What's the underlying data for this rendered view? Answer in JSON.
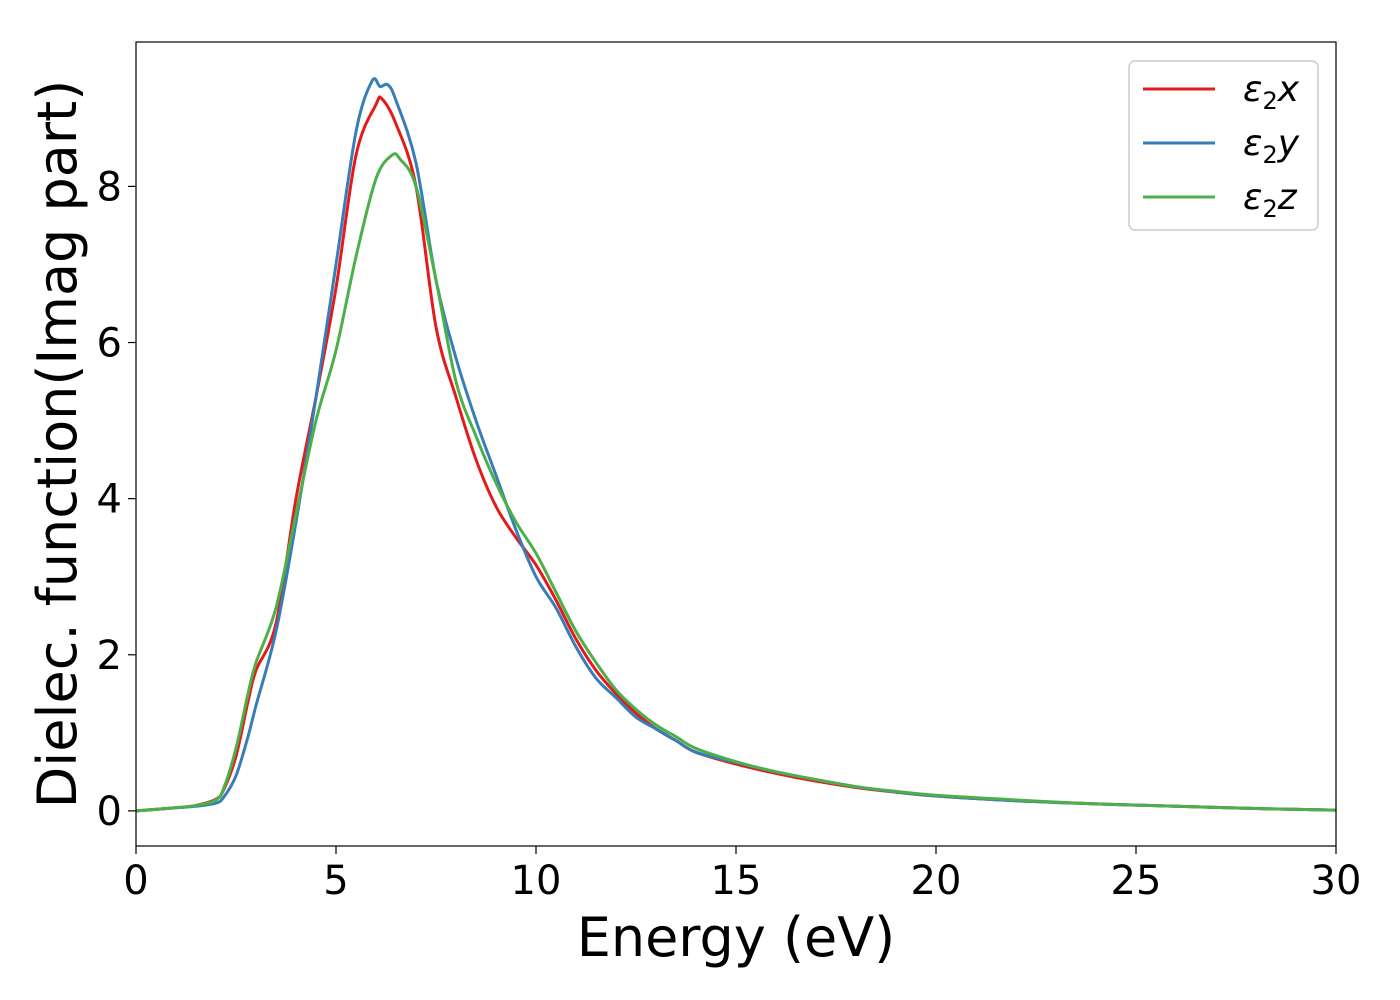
{
  "chart_data": {
    "type": "line",
    "title": "",
    "xlabel": "Energy (eV)",
    "ylabel": "Dielec. function(Imag part)",
    "xlim": [
      0,
      30
    ],
    "ylim": [
      -0.45,
      9.85
    ],
    "xticks": [
      0,
      5,
      10,
      15,
      20,
      25,
      30
    ],
    "xtick_labels": [
      "0",
      "5",
      "10",
      "15",
      "20",
      "25",
      "30"
    ],
    "yticks": [
      0,
      2,
      4,
      6,
      8
    ],
    "ytick_labels": [
      "0",
      "2",
      "4",
      "6",
      "8"
    ],
    "grid": false,
    "legend_position": "top-right",
    "series": [
      {
        "name": "ε2x",
        "legend": {
          "base": "ε",
          "sub": "2",
          "suffix": "x"
        },
        "color": "#e41a1c",
        "x": [
          0,
          1,
          1.5,
          2,
          2.2,
          2.5,
          2.8,
          3,
          3.5,
          4,
          4.5,
          5,
          5.5,
          6,
          6.15,
          6.5,
          7,
          7.5,
          8,
          8.5,
          9,
          9.5,
          10,
          10.5,
          11,
          11.5,
          12,
          12.5,
          13,
          13.5,
          14,
          15,
          16,
          17,
          18,
          19,
          20,
          22,
          24,
          26,
          28,
          30
        ],
        "y": [
          0,
          0.04,
          0.07,
          0.15,
          0.28,
          0.7,
          1.4,
          1.8,
          2.4,
          4.0,
          5.3,
          6.7,
          8.4,
          9.05,
          9.12,
          8.8,
          8.0,
          6.2,
          5.3,
          4.5,
          3.9,
          3.5,
          3.15,
          2.7,
          2.2,
          1.8,
          1.5,
          1.25,
          1.05,
          0.9,
          0.75,
          0.6,
          0.48,
          0.38,
          0.3,
          0.24,
          0.19,
          0.13,
          0.09,
          0.06,
          0.03,
          0.01
        ]
      },
      {
        "name": "ε2y",
        "legend": {
          "base": "ε",
          "sub": "2",
          "suffix": "y"
        },
        "color": "#377eb8",
        "x": [
          0,
          1,
          1.5,
          2,
          2.2,
          2.5,
          2.8,
          3,
          3.5,
          4,
          4.5,
          5,
          5.5,
          5.9,
          6.1,
          6.3,
          6.5,
          7,
          7.5,
          8,
          8.5,
          9,
          9.5,
          10,
          10.5,
          11,
          11.5,
          12,
          12.5,
          13,
          13.5,
          14,
          15,
          16,
          17,
          18,
          19,
          20,
          22,
          24,
          26,
          28,
          30
        ],
        "y": [
          0,
          0.04,
          0.06,
          0.1,
          0.18,
          0.45,
          0.95,
          1.35,
          2.3,
          3.7,
          5.3,
          7.0,
          8.7,
          9.35,
          9.28,
          9.3,
          9.1,
          8.3,
          6.8,
          5.8,
          5.0,
          4.3,
          3.6,
          3.0,
          2.6,
          2.1,
          1.7,
          1.45,
          1.2,
          1.05,
          0.9,
          0.75,
          0.62,
          0.5,
          0.4,
          0.31,
          0.24,
          0.19,
          0.13,
          0.09,
          0.06,
          0.03,
          0.01
        ]
      },
      {
        "name": "ε2z",
        "legend": {
          "base": "ε",
          "sub": "2",
          "suffix": "z"
        },
        "color": "#4daf4a",
        "x": [
          0,
          1,
          1.5,
          2,
          2.2,
          2.5,
          2.8,
          3,
          3.5,
          4,
          4.5,
          5,
          5.5,
          6,
          6.4,
          6.6,
          7,
          7.5,
          8,
          8.5,
          9,
          9.5,
          10,
          10.5,
          11,
          11.5,
          12,
          12.5,
          13,
          13.5,
          14,
          15,
          16,
          17,
          18,
          19,
          20,
          22,
          24,
          26,
          28,
          30
        ],
        "y": [
          0,
          0.04,
          0.07,
          0.14,
          0.3,
          0.8,
          1.5,
          1.9,
          2.6,
          3.8,
          5.0,
          5.9,
          7.1,
          8.1,
          8.4,
          8.35,
          8.0,
          6.8,
          5.5,
          4.8,
          4.2,
          3.7,
          3.3,
          2.8,
          2.3,
          1.9,
          1.55,
          1.3,
          1.1,
          0.95,
          0.8,
          0.63,
          0.5,
          0.4,
          0.31,
          0.25,
          0.2,
          0.14,
          0.09,
          0.06,
          0.03,
          0.01
        ]
      }
    ]
  }
}
